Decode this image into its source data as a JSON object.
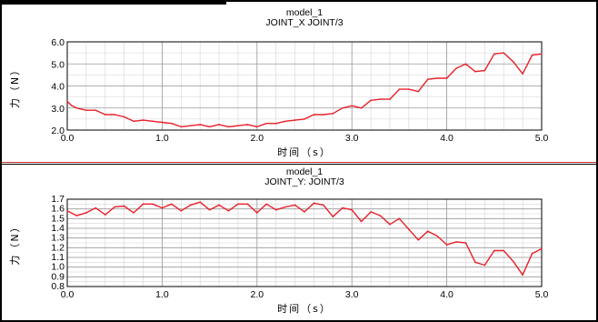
{
  "chart_data": [
    {
      "type": "line",
      "title": "model_1",
      "subtitle": "JOINT_X JOINT/3",
      "xlabel": "时间（s）",
      "ylabel": "力（N）",
      "xlim": [
        0.0,
        5.0
      ],
      "ylim": [
        2.0,
        6.0
      ],
      "xticks": [
        "0.0",
        "1.0",
        "2.0",
        "3.0",
        "4.0",
        "5.0"
      ],
      "yticks": [
        "2.0",
        "3.0",
        "4.0",
        "5.0",
        "6.0"
      ],
      "grid": true,
      "line_color": "#e8202a",
      "x": [
        0.0,
        0.05,
        0.1,
        0.2,
        0.3,
        0.4,
        0.5,
        0.6,
        0.7,
        0.8,
        0.9,
        1.0,
        1.1,
        1.2,
        1.3,
        1.4,
        1.5,
        1.6,
        1.7,
        1.8,
        1.9,
        2.0,
        2.1,
        2.2,
        2.3,
        2.4,
        2.5,
        2.6,
        2.7,
        2.8,
        2.9,
        3.0,
        3.1,
        3.2,
        3.3,
        3.4,
        3.5,
        3.6,
        3.7,
        3.8,
        3.9,
        4.0,
        4.1,
        4.2,
        4.3,
        4.4,
        4.5,
        4.6,
        4.7,
        4.8,
        4.9,
        5.0
      ],
      "values": [
        3.3,
        3.1,
        3.0,
        2.9,
        2.9,
        2.7,
        2.7,
        2.6,
        2.4,
        2.45,
        2.4,
        2.35,
        2.3,
        2.15,
        2.2,
        2.25,
        2.15,
        2.25,
        2.15,
        2.2,
        2.25,
        2.15,
        2.3,
        2.3,
        2.4,
        2.45,
        2.5,
        2.7,
        2.7,
        2.75,
        3.0,
        3.1,
        3.0,
        3.35,
        3.4,
        3.4,
        3.85,
        3.85,
        3.75,
        4.3,
        4.35,
        4.35,
        4.8,
        5.0,
        4.65,
        4.7,
        5.45,
        5.5,
        5.1,
        4.55,
        5.4,
        5.45
      ]
    },
    {
      "type": "line",
      "title": "model_1",
      "subtitle": "JOINT_Y: JOINT/3",
      "xlabel": "时间（s）",
      "ylabel": "力（N）",
      "xlim": [
        0.0,
        5.0
      ],
      "ylim": [
        0.8,
        1.7
      ],
      "xticks": [
        "0.0",
        "1.0",
        "2.0",
        "3.0",
        "4.0",
        "5.0"
      ],
      "yticks": [
        "0.8",
        "0.9",
        "1.0",
        "1.1",
        "1.2",
        "1.3",
        "1.4",
        "1.5",
        "1.6",
        "1.7"
      ],
      "grid": true,
      "line_color": "#e8202a",
      "x": [
        0.0,
        0.1,
        0.2,
        0.3,
        0.4,
        0.5,
        0.6,
        0.7,
        0.8,
        0.9,
        1.0,
        1.1,
        1.2,
        1.3,
        1.4,
        1.5,
        1.6,
        1.7,
        1.8,
        1.9,
        2.0,
        2.1,
        2.2,
        2.3,
        2.4,
        2.5,
        2.6,
        2.7,
        2.8,
        2.9,
        3.0,
        3.1,
        3.2,
        3.3,
        3.4,
        3.5,
        3.6,
        3.7,
        3.8,
        3.9,
        4.0,
        4.1,
        4.2,
        4.3,
        4.4,
        4.5,
        4.6,
        4.7,
        4.8,
        4.9,
        5.0
      ],
      "values": [
        1.58,
        1.53,
        1.56,
        1.61,
        1.54,
        1.62,
        1.63,
        1.56,
        1.65,
        1.65,
        1.61,
        1.65,
        1.58,
        1.64,
        1.67,
        1.59,
        1.64,
        1.58,
        1.65,
        1.65,
        1.56,
        1.65,
        1.59,
        1.62,
        1.64,
        1.57,
        1.66,
        1.64,
        1.52,
        1.61,
        1.59,
        1.47,
        1.57,
        1.53,
        1.44,
        1.5,
        1.39,
        1.28,
        1.37,
        1.32,
        1.23,
        1.26,
        1.25,
        1.05,
        1.02,
        1.17,
        1.17,
        1.06,
        0.92,
        1.14,
        1.19
      ]
    }
  ]
}
